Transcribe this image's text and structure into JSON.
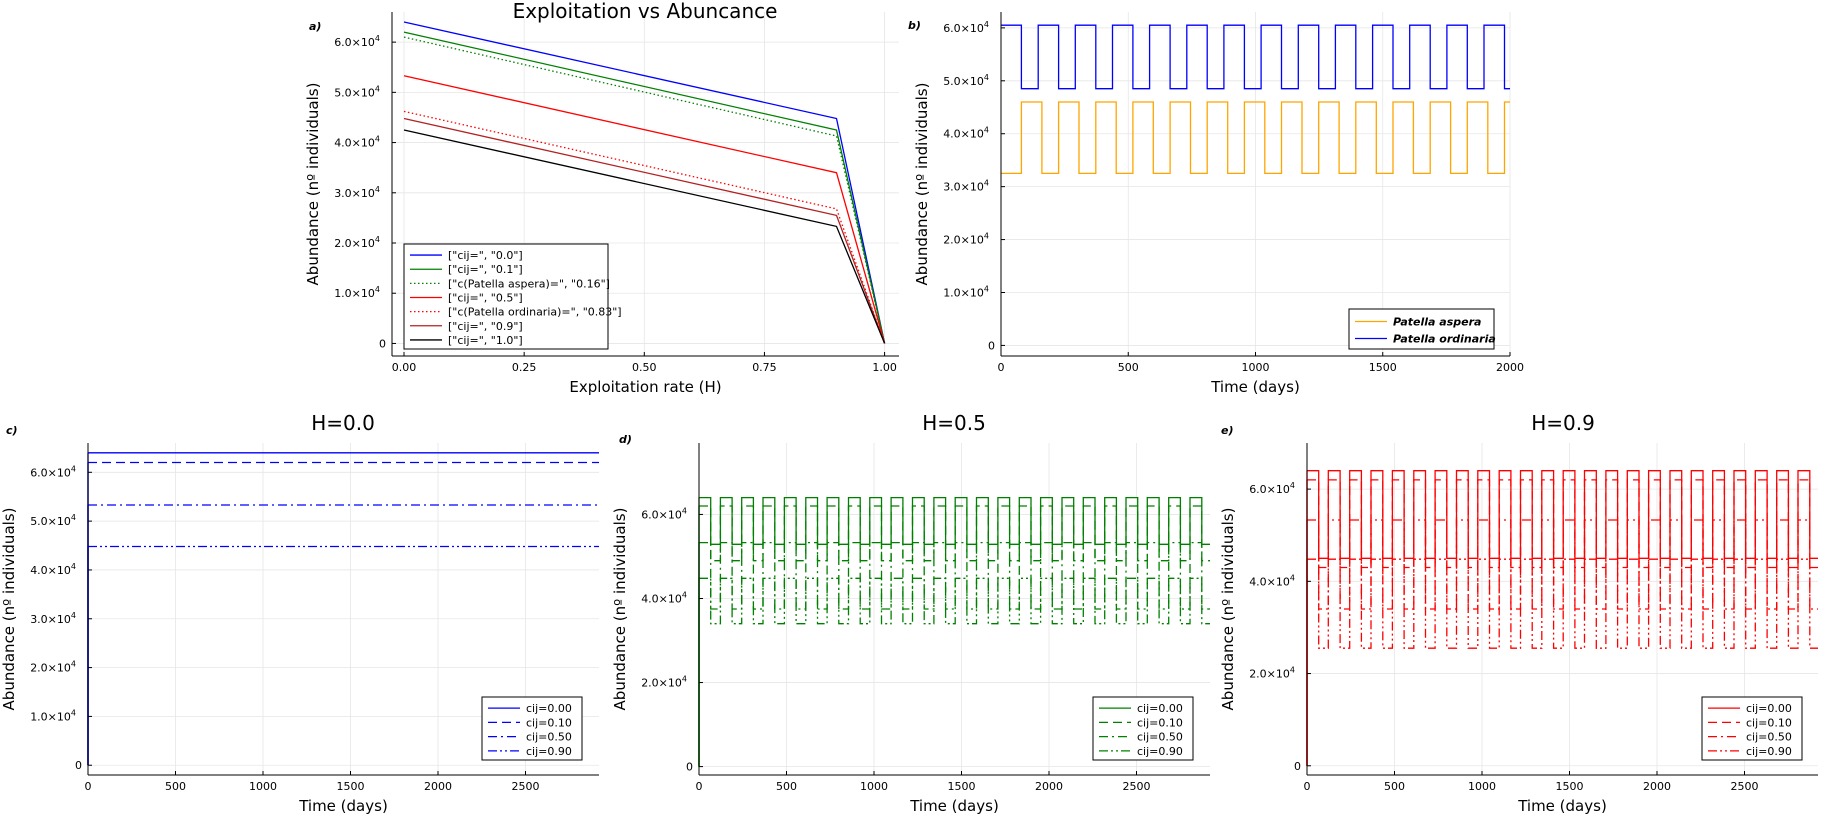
{
  "chart_data": [
    {
      "panel_label": "a)",
      "type": "line",
      "title": "Exploitation vs Abuncance",
      "xlabel": "Exploitation rate (H)",
      "ylabel": "Abundance (nº individuals)",
      "xlim": [
        -0.025,
        1.03
      ],
      "ylim": [
        -2500,
        66000
      ],
      "xticks": [
        0.0,
        0.25,
        0.5,
        0.75,
        1.0
      ],
      "xtick_labels": [
        "0.00",
        "0.25",
        "0.50",
        "0.75",
        "1.00"
      ],
      "yticks": [
        0,
        10000,
        20000,
        30000,
        40000,
        50000,
        60000
      ],
      "ytick_labels": [
        "0",
        "1.0×10",
        "2.0×10",
        "3.0×10",
        "4.0×10",
        "5.0×10",
        "6.0×10"
      ],
      "ytick_exponent": "4",
      "grid": true,
      "legend_position": "bottom-left",
      "x": [
        0.0,
        0.9,
        1.0
      ],
      "series": [
        {
          "name": "[\"cij=\", \"0.0\"]",
          "color": "#0000ff",
          "dash": "solid",
          "values": [
            64000,
            44800,
            0
          ]
        },
        {
          "name": "[\"cij=\", \"0.1\"]",
          "color": "#008000",
          "dash": "solid",
          "values": [
            62000,
            42500,
            0
          ]
        },
        {
          "name": "[\"c(Patella aspera)=\", \"0.16\"]",
          "color": "#008000",
          "dash": "dot",
          "values": [
            61000,
            41300,
            0
          ]
        },
        {
          "name": "[\"cij=\", \"0.5\"]",
          "color": "#ff0000",
          "dash": "solid",
          "values": [
            53300,
            34000,
            0
          ]
        },
        {
          "name": "[\"c(Patella ordinaria)=\", \"0.83\"]",
          "color": "#ff0000",
          "dash": "dot",
          "values": [
            46200,
            26800,
            0
          ]
        },
        {
          "name": "[\"cij=\", \"0.9\"]",
          "color": "#b22222",
          "dash": "solid",
          "values": [
            44800,
            25500,
            0
          ]
        },
        {
          "name": "[\"cij=\", \"1.0\"]",
          "color": "#000000",
          "dash": "solid",
          "values": [
            42500,
            23300,
            0
          ]
        }
      ]
    },
    {
      "panel_label": "b)",
      "type": "line",
      "title": "",
      "xlabel": "Time (days)",
      "ylabel": "Abundance (nº individuals)",
      "xlim": [
        0,
        2000
      ],
      "ylim": [
        -2000,
        63000
      ],
      "xticks": [
        0,
        500,
        1000,
        1500,
        2000
      ],
      "xtick_labels": [
        "0",
        "500",
        "1000",
        "1500",
        "2000"
      ],
      "yticks": [
        0,
        10000,
        20000,
        30000,
        40000,
        50000,
        60000
      ],
      "ytick_labels": [
        "0",
        "1.0×10",
        "2.0×10",
        "3.0×10",
        "4.0×10",
        "5.0×10",
        "6.0×10"
      ],
      "ytick_exponent": "4",
      "grid": true,
      "legend_position": "bottom-right",
      "series": [
        {
          "name": "Patella aspera",
          "color": "#ffa500",
          "dash": "solid",
          "period": 146,
          "phase": 0,
          "duty": 0.55,
          "high": 46000,
          "low": 32500,
          "high_first": false
        },
        {
          "name": "Patella ordinaria",
          "color": "#0000ff",
          "dash": "solid",
          "period": 146,
          "phase": 0,
          "duty": 0.55,
          "high": 60500,
          "low": 48500,
          "high_first": true
        }
      ]
    },
    {
      "panel_label": "c)",
      "type": "line",
      "title": "H=0.0",
      "xlabel": "Time (days)",
      "ylabel": "Abundance (nº individuals)",
      "xlim": [
        0,
        2920
      ],
      "ylim": [
        -2000,
        66000
      ],
      "xticks": [
        0,
        500,
        1000,
        1500,
        2000,
        2500
      ],
      "xtick_labels": [
        "0",
        "500",
        "1000",
        "1500",
        "2000",
        "2500"
      ],
      "yticks": [
        0,
        10000,
        20000,
        30000,
        40000,
        50000,
        60000
      ],
      "ytick_labels": [
        "0",
        "1.0×10",
        "2.0×10",
        "3.0×10",
        "4.0×10",
        "5.0×10",
        "6.0×10"
      ],
      "ytick_exponent": "4",
      "grid": true,
      "legend_position": "bottom-right",
      "series": [
        {
          "name": "cij=0.00",
          "color": "#0000ff",
          "dash": "solid",
          "high": 64000,
          "low": 64000
        },
        {
          "name": "cij=0.10",
          "color": "#0000ff",
          "dash": "dash",
          "high": 62000,
          "low": 62000
        },
        {
          "name": "cij=0.50",
          "color": "#0000ff",
          "dash": "dashdot",
          "high": 53300,
          "low": 53300
        },
        {
          "name": "cij=0.90",
          "color": "#0000ff",
          "dash": "dashdotdot",
          "high": 44800,
          "low": 44800
        }
      ]
    },
    {
      "panel_label": "d)",
      "type": "line",
      "title": "H=0.5",
      "xlabel": "Time (days)",
      "ylabel": "Abundance (nº individuals)",
      "xlim": [
        0,
        2920
      ],
      "ylim": [
        -2000,
        77000
      ],
      "xticks": [
        0,
        500,
        1000,
        1500,
        2000,
        2500
      ],
      "xtick_labels": [
        "0",
        "500",
        "1000",
        "1500",
        "2000",
        "2500"
      ],
      "yticks": [
        0,
        20000,
        40000,
        60000
      ],
      "ytick_labels": [
        "0",
        "2.0×10",
        "4.0×10",
        "6.0×10"
      ],
      "ytick_exponent": "4",
      "grid": true,
      "legend_position": "bottom-right",
      "series": [
        {
          "name": "cij=0.00",
          "color": "#008000",
          "dash": "solid",
          "period": 122,
          "phase": 0,
          "duty": 0.55,
          "high": 64000,
          "low": 52900,
          "high_first": true
        },
        {
          "name": "cij=0.10",
          "color": "#008000",
          "dash": "dash",
          "period": 122,
          "phase": 0,
          "duty": 0.55,
          "high": 62000,
          "low": 49000,
          "high_first": true
        },
        {
          "name": "cij=0.50",
          "color": "#008000",
          "dash": "dashdot",
          "period": 122,
          "phase": 0,
          "duty": 0.55,
          "high": 53300,
          "low": 37500,
          "high_first": true
        },
        {
          "name": "cij=0.90",
          "color": "#008000",
          "dash": "dashdotdot",
          "period": 122,
          "phase": 0,
          "duty": 0.55,
          "high": 44800,
          "low": 34000,
          "high_first": true
        }
      ]
    },
    {
      "panel_label": "e)",
      "type": "line",
      "title": "H=0.9",
      "xlabel": "Time (days)",
      "ylabel": "Abundance (nº individuals)",
      "xlim": [
        0,
        2920
      ],
      "ylim": [
        -2000,
        70000
      ],
      "xticks": [
        0,
        500,
        1000,
        1500,
        2000,
        2500
      ],
      "xtick_labels": [
        "0",
        "500",
        "1000",
        "1500",
        "2000",
        "2500"
      ],
      "yticks": [
        0,
        20000,
        40000,
        60000
      ],
      "ytick_labels": [
        "0",
        "2.0×10",
        "4.0×10",
        "6.0×10"
      ],
      "ytick_exponent": "4",
      "grid": true,
      "legend_position": "bottom-right",
      "series": [
        {
          "name": "cij=0.00",
          "color": "#ff0000",
          "dash": "solid",
          "period": 122,
          "phase": 0,
          "duty": 0.55,
          "high": 64000,
          "low": 45000,
          "high_first": true
        },
        {
          "name": "cij=0.10",
          "color": "#ff0000",
          "dash": "dash",
          "period": 122,
          "phase": 0,
          "duty": 0.55,
          "high": 62000,
          "low": 43000,
          "high_first": true
        },
        {
          "name": "cij=0.50",
          "color": "#ff0000",
          "dash": "dashdot",
          "period": 122,
          "phase": 0,
          "duty": 0.55,
          "high": 53300,
          "low": 34000,
          "high_first": true
        },
        {
          "name": "cij=0.90",
          "color": "#ff0000",
          "dash": "dashdotdot",
          "period": 122,
          "phase": 0,
          "duty": 0.55,
          "high": 44800,
          "low": 25500,
          "high_first": true
        }
      ]
    }
  ]
}
